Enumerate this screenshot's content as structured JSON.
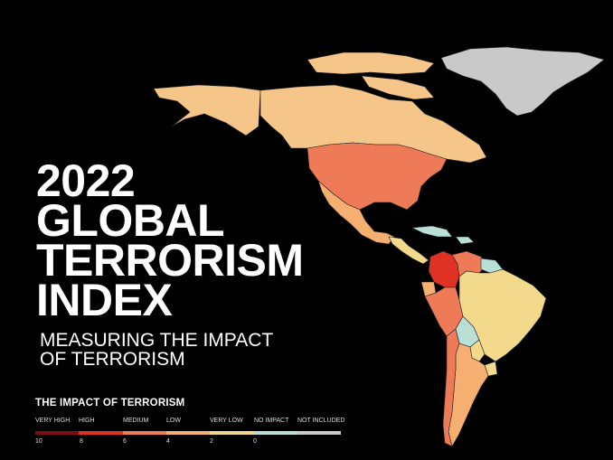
{
  "title_lines": [
    "2022",
    "GLOBAL",
    "TERRORISM",
    "INDEX"
  ],
  "subtitle_lines": [
    "MEASURING THE IMPACT",
    "OF TERRORISM"
  ],
  "legend": {
    "title": "THE IMPACT OF TERRORISM",
    "categories": [
      {
        "label": "VERY HIGH",
        "color": "#7a1016"
      },
      {
        "label": "HIGH",
        "color": "#e03125"
      },
      {
        "label": "MEDIUM",
        "color": "#ee7a58"
      },
      {
        "label": "LOW",
        "color": "#f5b071"
      },
      {
        "label": "VERY LOW",
        "color": "#f3d98c"
      },
      {
        "label": "NO IMPACT",
        "color": "#b9dfd6"
      },
      {
        "label": "NOT INCLUDED",
        "color": "#c9c9c9"
      }
    ],
    "ticks": [
      "10",
      "8",
      "6",
      "4",
      "2",
      "0"
    ]
  },
  "map_colors": {
    "greenland": "#c9c9c9",
    "canada": "#f5c58a",
    "alaska": "#f5c58a",
    "usa": "#ee7a58",
    "mexico": "#f5b071",
    "central_america": "#f3d98c",
    "caribbean": "#b9dfd6",
    "colombia": "#e03125",
    "venezuela": "#ee7a58",
    "guyanas": "#b9dfd6",
    "ecuador": "#f5b071",
    "peru": "#ee7a58",
    "brazil": "#f3d98c",
    "bolivia": "#b9dfd6",
    "paraguay": "#f3d98c",
    "argentina": "#f5b071",
    "chile": "#ee7a58",
    "uruguay": "#f3d98c"
  }
}
